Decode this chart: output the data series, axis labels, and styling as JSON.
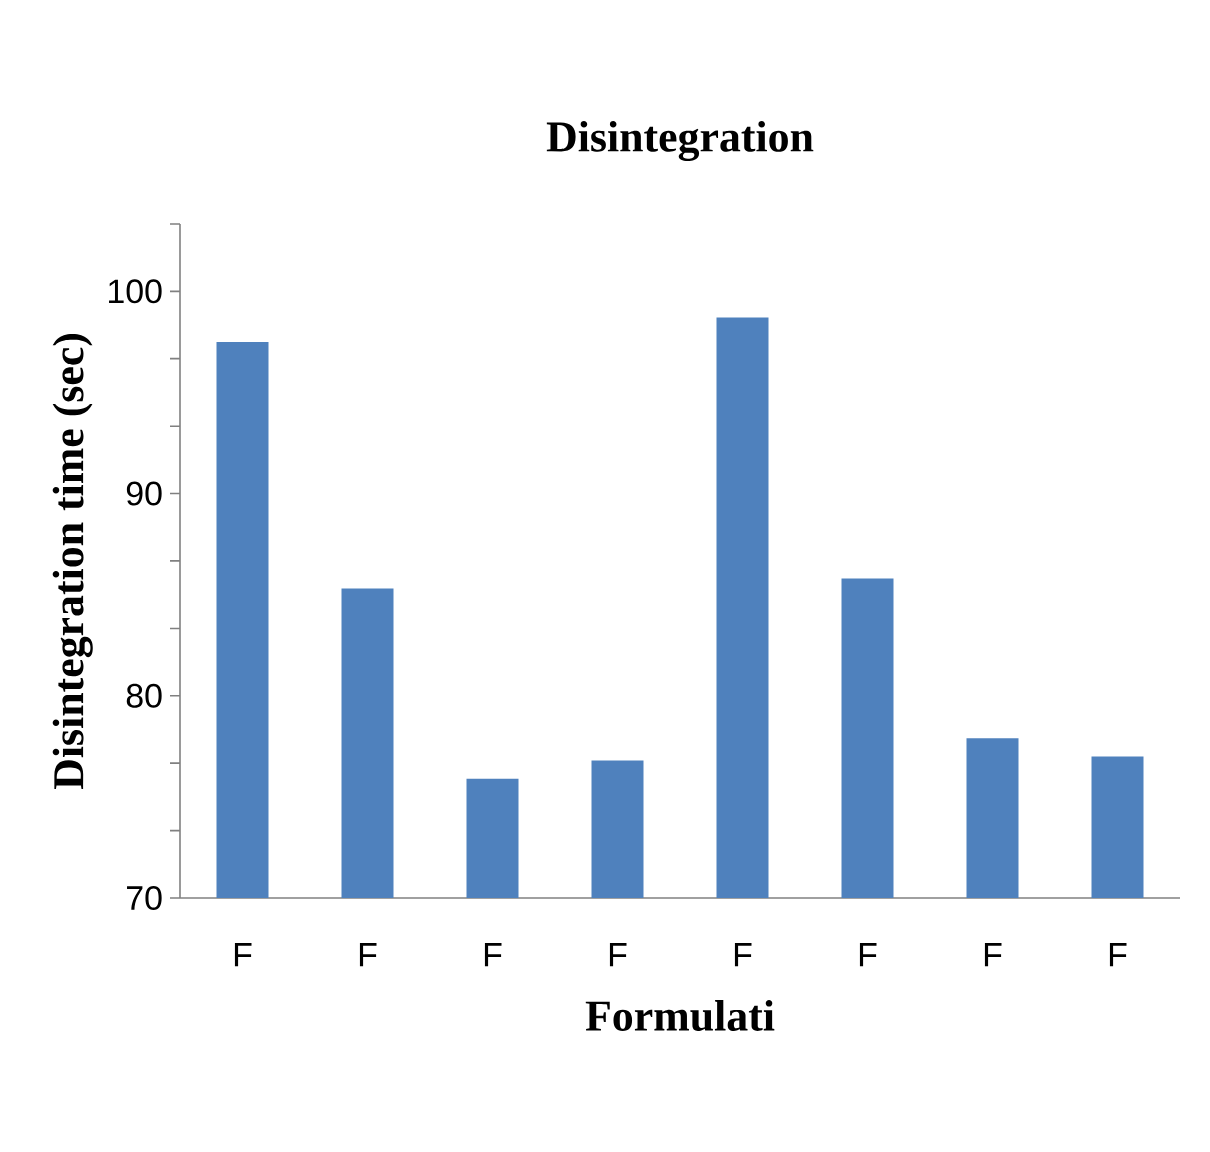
{
  "chart_data": {
    "type": "bar",
    "title": "Disintegration",
    "xlabel": "Formulati",
    "ylabel": "Disintegration time (sec)",
    "categories": [
      "F",
      "F",
      "F",
      "F",
      "F",
      "F",
      "F",
      "F"
    ],
    "values": [
      97.5,
      85.3,
      75.9,
      76.8,
      98.7,
      85.8,
      77.9,
      77.0
    ],
    "color": "#4f81bd",
    "ylim": [
      70,
      103.33
    ],
    "yticks": [
      70,
      {
        "value": 73.33,
        "label": null
      },
      {
        "value": 76.67,
        "label": null
      },
      80,
      {
        "value": 83.33,
        "label": null
      },
      {
        "value": 86.67,
        "label": null
      },
      90,
      {
        "value": 93.33,
        "label": null
      },
      {
        "value": 96.67,
        "label": null
      },
      100,
      {
        "value": 103.33,
        "label": null
      }
    ],
    "grid": false
  }
}
